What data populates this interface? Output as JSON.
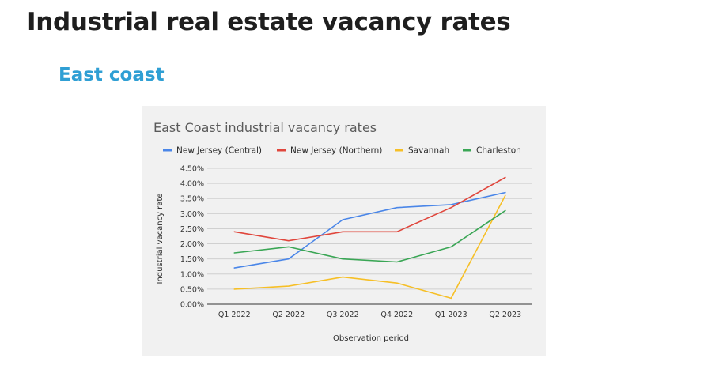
{
  "page": {
    "title": "Industrial real estate vacancy rates",
    "section_title": "East coast"
  },
  "colors": {
    "page_title": "#1e1e1e",
    "section_title": "#2f9fd4",
    "chart_background": "#f1f1f1",
    "gridline": "#d0d0d0",
    "axis": "#333333"
  },
  "chart_data": {
    "type": "line",
    "title": "East Coast industrial vacancy rates",
    "xlabel": "Observation period",
    "ylabel": "Industrial vacancy rate",
    "categories": [
      "Q1 2022",
      "Q2 2022",
      "Q3 2022",
      "Q4 2022",
      "Q1 2023",
      "Q2 2023"
    ],
    "ylim": [
      0,
      4.5
    ],
    "yticks": [
      0,
      0.5,
      1.0,
      1.5,
      2.0,
      2.5,
      3.0,
      3.5,
      4.0,
      4.5
    ],
    "ytick_labels": [
      "0.00%",
      "0.50%",
      "1.00%",
      "1.50%",
      "2.00%",
      "2.50%",
      "3.00%",
      "3.50%",
      "4.00%",
      "4.50%"
    ],
    "grid": true,
    "legend_position": "top",
    "series": [
      {
        "name": "New Jersey (Central)",
        "color": "#4a86e8",
        "values": [
          1.2,
          1.5,
          2.8,
          3.2,
          3.3,
          3.7
        ]
      },
      {
        "name": "New Jersey (Northern)",
        "color": "#e0463c",
        "values": [
          2.4,
          2.1,
          2.4,
          2.4,
          3.2,
          4.2
        ]
      },
      {
        "name": "Savannah",
        "color": "#f6bf26",
        "values": [
          0.5,
          0.6,
          0.9,
          0.7,
          0.2,
          3.6
        ]
      },
      {
        "name": "Charleston",
        "color": "#3aa655",
        "values": [
          1.7,
          1.9,
          1.5,
          1.4,
          1.9,
          3.1
        ]
      }
    ]
  }
}
